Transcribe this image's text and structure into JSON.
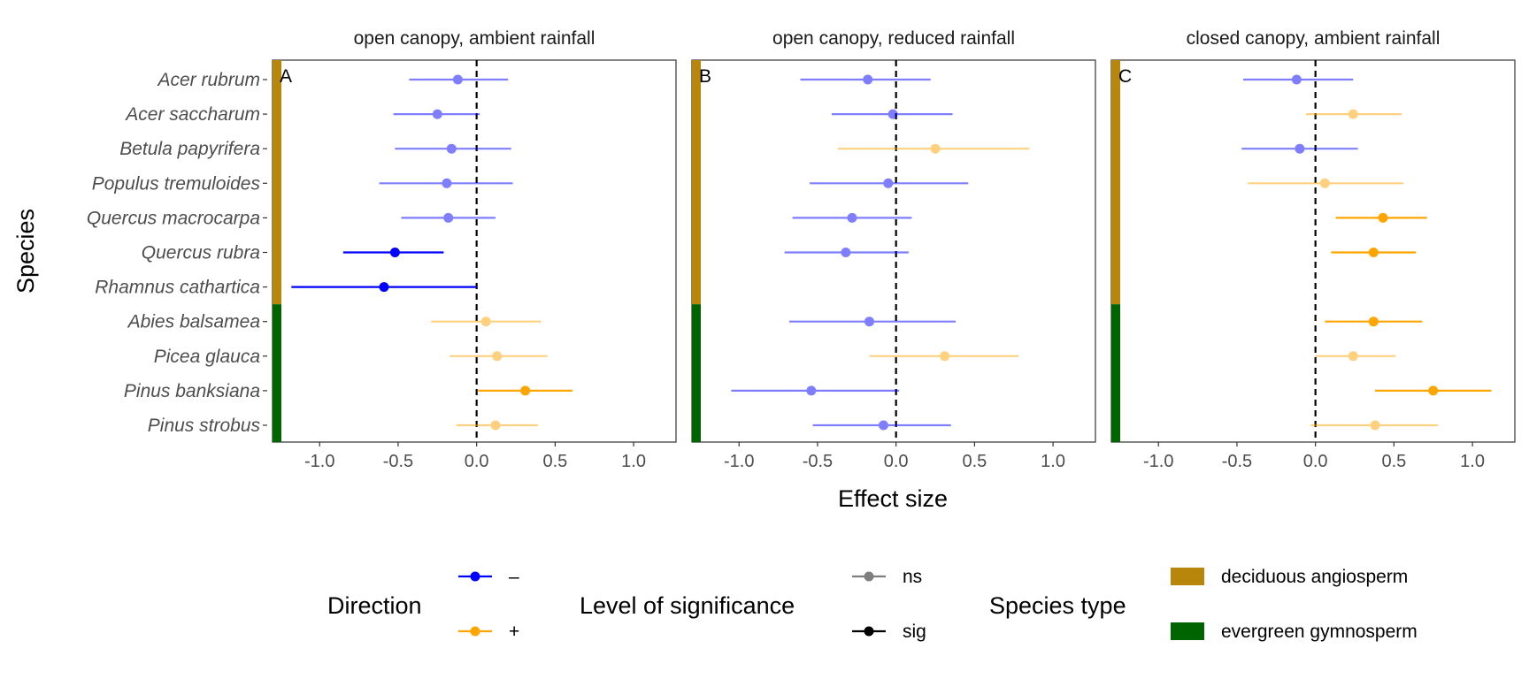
{
  "chart_data": {
    "type": "forest",
    "xlabel": "Effect size",
    "ylabel": "Species",
    "xlim": [
      -1.3,
      1.27
    ],
    "xticks": [
      -1.0,
      -0.5,
      0.0,
      0.5,
      1.0
    ],
    "xtick_labels": [
      "-1.0",
      "-0.5",
      "0.0",
      "0.5",
      "1.0"
    ],
    "reference_line": 0,
    "species": [
      "Acer rubrum",
      "Acer saccharum",
      "Betula papyrifera",
      "Populus tremuloides",
      "Quercus macrocarpa",
      "Quercus rubra",
      "Rhamnus cathartica",
      "Abies balsamea",
      "Picea glauca",
      "Pinus banksiana",
      "Pinus strobus"
    ],
    "species_type": [
      "deciduous angiosperm",
      "deciduous angiosperm",
      "deciduous angiosperm",
      "deciduous angiosperm",
      "deciduous angiosperm",
      "deciduous angiosperm",
      "deciduous angiosperm",
      "evergreen gymnosperm",
      "evergreen gymnosperm",
      "evergreen gymnosperm",
      "evergreen gymnosperm"
    ],
    "panels": [
      {
        "title": "open canopy, ambient rainfall",
        "letter": "A",
        "points": [
          {
            "est": -0.12,
            "lo": -0.43,
            "hi": 0.2,
            "dir": "-",
            "sig": "ns"
          },
          {
            "est": -0.25,
            "lo": -0.53,
            "hi": 0.02,
            "dir": "-",
            "sig": "ns"
          },
          {
            "est": -0.16,
            "lo": -0.52,
            "hi": 0.22,
            "dir": "-",
            "sig": "ns"
          },
          {
            "est": -0.19,
            "lo": -0.62,
            "hi": 0.23,
            "dir": "-",
            "sig": "ns"
          },
          {
            "est": -0.18,
            "lo": -0.48,
            "hi": 0.12,
            "dir": "-",
            "sig": "ns"
          },
          {
            "est": -0.52,
            "lo": -0.85,
            "hi": -0.21,
            "dir": "-",
            "sig": "sig"
          },
          {
            "est": -0.59,
            "lo": -1.18,
            "hi": 0.0,
            "dir": "-",
            "sig": "sig"
          },
          {
            "est": 0.06,
            "lo": -0.29,
            "hi": 0.41,
            "dir": "+",
            "sig": "ns"
          },
          {
            "est": 0.13,
            "lo": -0.17,
            "hi": 0.45,
            "dir": "+",
            "sig": "ns"
          },
          {
            "est": 0.31,
            "lo": 0.01,
            "hi": 0.61,
            "dir": "+",
            "sig": "sig"
          },
          {
            "est": 0.12,
            "lo": -0.13,
            "hi": 0.39,
            "dir": "+",
            "sig": "ns"
          }
        ]
      },
      {
        "title": "open canopy, reduced rainfall",
        "letter": "B",
        "points": [
          {
            "est": -0.18,
            "lo": -0.61,
            "hi": 0.22,
            "dir": "-",
            "sig": "ns"
          },
          {
            "est": -0.02,
            "lo": -0.41,
            "hi": 0.36,
            "dir": "-",
            "sig": "ns"
          },
          {
            "est": 0.25,
            "lo": -0.37,
            "hi": 0.85,
            "dir": "+",
            "sig": "ns"
          },
          {
            "est": -0.05,
            "lo": -0.55,
            "hi": 0.46,
            "dir": "-",
            "sig": "ns"
          },
          {
            "est": -0.28,
            "lo": -0.66,
            "hi": 0.1,
            "dir": "-",
            "sig": "ns"
          },
          {
            "est": -0.32,
            "lo": -0.71,
            "hi": 0.08,
            "dir": "-",
            "sig": "ns"
          },
          {
            "est": -0.17,
            "lo": -0.68,
            "hi": 0.38,
            "dir": "-",
            "sig": "ns"
          },
          {
            "est": 0.31,
            "lo": -0.17,
            "hi": 0.78,
            "dir": "+",
            "sig": "ns"
          },
          {
            "est": -0.54,
            "lo": -1.05,
            "hi": 0.02,
            "dir": "-",
            "sig": "ns"
          },
          {
            "est": -0.08,
            "lo": -0.53,
            "hi": 0.35,
            "dir": "-",
            "sig": "ns"
          }
        ],
        "point_rows": [
          0,
          1,
          2,
          3,
          4,
          5,
          7,
          8,
          9,
          10
        ]
      },
      {
        "title": "closed canopy, ambient rainfall",
        "letter": "C",
        "points": [
          {
            "est": -0.12,
            "lo": -0.46,
            "hi": 0.24,
            "dir": "-",
            "sig": "ns"
          },
          {
            "est": 0.24,
            "lo": -0.06,
            "hi": 0.55,
            "dir": "+",
            "sig": "ns"
          },
          {
            "est": -0.1,
            "lo": -0.47,
            "hi": 0.27,
            "dir": "-",
            "sig": "ns"
          },
          {
            "est": 0.06,
            "lo": -0.43,
            "hi": 0.56,
            "dir": "+",
            "sig": "ns"
          },
          {
            "est": 0.43,
            "lo": 0.13,
            "hi": 0.71,
            "dir": "+",
            "sig": "sig"
          },
          {
            "est": 0.37,
            "lo": 0.1,
            "hi": 0.64,
            "dir": "+",
            "sig": "sig"
          },
          {
            "est": 0.37,
            "lo": 0.06,
            "hi": 0.68,
            "dir": "+",
            "sig": "sig"
          },
          {
            "est": 0.24,
            "lo": 0.0,
            "hi": 0.51,
            "dir": "+",
            "sig": "ns"
          },
          {
            "est": 0.75,
            "lo": 0.38,
            "hi": 1.12,
            "dir": "+",
            "sig": "sig"
          },
          {
            "est": 0.38,
            "lo": -0.03,
            "hi": 0.78,
            "dir": "+",
            "sig": "ns"
          }
        ],
        "point_rows": [
          0,
          1,
          2,
          3,
          4,
          5,
          7,
          8,
          9,
          10
        ]
      }
    ],
    "colors": {
      "negative": "#0000ff",
      "positive": "#ffa500",
      "deciduous angiosperm": "#b8860b",
      "evergreen gymnosperm": "#006400",
      "ns_sample": "#666666",
      "sig_sample": "#000000"
    },
    "ns_opacity": 0.5,
    "legend": {
      "placement": "bottom",
      "groups": [
        {
          "title": "Direction",
          "items": [
            {
              "label": "–",
              "kind": "line-point",
              "color": "#0000ff",
              "opacity": 1
            },
            {
              "label": "+",
              "kind": "line-point",
              "color": "#ffa500",
              "opacity": 1
            }
          ]
        },
        {
          "title": "Level of significance",
          "items": [
            {
              "label": "ns",
              "kind": "line-point",
              "color": "#000000",
              "opacity": 0.5
            },
            {
              "label": "sig",
              "kind": "line-point",
              "color": "#000000",
              "opacity": 1
            }
          ]
        },
        {
          "title": "Species type",
          "items": [
            {
              "label": "deciduous angiosperm",
              "kind": "rect",
              "color": "#b8860b"
            },
            {
              "label": "evergreen gymnosperm",
              "kind": "rect",
              "color": "#006400"
            }
          ]
        }
      ]
    }
  }
}
